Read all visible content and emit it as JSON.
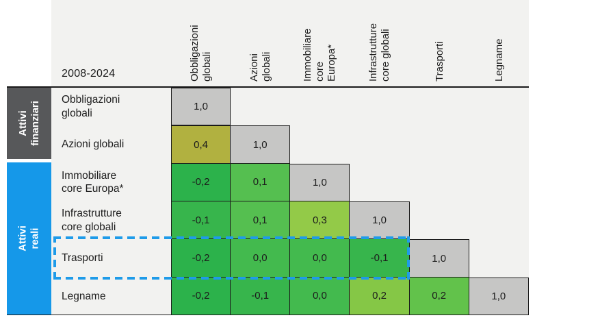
{
  "title": "2008-2024",
  "colors": {
    "page_bg": "#ffffff",
    "table_bg": "#f2f2f0",
    "grid_line": "#1a1a1a",
    "diagonal_cell": "#c6c6c5",
    "financial_block": "#57585a",
    "real_block": "#1598e9",
    "highlight_dash": "#1e9be9",
    "text": "#1c1c1c",
    "side_text": "#ffffff"
  },
  "side_groups": [
    {
      "label": "Attivi\nfinanziari"
    },
    {
      "label": "Attivi reali"
    }
  ],
  "columns": [
    {
      "label": "Obbligazioni\nglobali"
    },
    {
      "label": "Azioni\nglobali"
    },
    {
      "label": "Immobiliare\ncore\nEuropa*"
    },
    {
      "label": "Infrastrutture\ncore globali"
    },
    {
      "label": "Trasporti"
    },
    {
      "label": "Legname"
    }
  ],
  "rows": [
    {
      "label": "Obbligazioni\nglobali",
      "cells": [
        {
          "v": "1,0",
          "bg": "#c6c6c5"
        }
      ]
    },
    {
      "label": "Azioni globali",
      "cells": [
        {
          "v": "0,4",
          "bg": "#b1b140"
        },
        {
          "v": "1,0",
          "bg": "#c6c6c5"
        }
      ]
    },
    {
      "label": "Immobiliare\ncore Europa*",
      "cells": [
        {
          "v": "-0,2",
          "bg": "#2cb24b"
        },
        {
          "v": "0,1",
          "bg": "#55bf50"
        },
        {
          "v": "1,0",
          "bg": "#c6c6c5"
        }
      ]
    },
    {
      "label": "Infrastrutture\ncore globali",
      "cells": [
        {
          "v": "-0,1",
          "bg": "#37b54c"
        },
        {
          "v": "0,1",
          "bg": "#55bf50"
        },
        {
          "v": "0,3",
          "bg": "#93ca48"
        },
        {
          "v": "1,0",
          "bg": "#c6c6c5"
        }
      ]
    },
    {
      "label": "Trasporti",
      "cells": [
        {
          "v": "-0,2",
          "bg": "#2cb24b"
        },
        {
          "v": "0,0",
          "bg": "#43ba4e"
        },
        {
          "v": "0,0",
          "bg": "#43ba4e"
        },
        {
          "v": "-0,1",
          "bg": "#37b54c"
        },
        {
          "v": "1,0",
          "bg": "#c6c6c5"
        }
      ]
    },
    {
      "label": "Legname",
      "cells": [
        {
          "v": "-0,2",
          "bg": "#2cb24b"
        },
        {
          "v": "-0,1",
          "bg": "#37b54c"
        },
        {
          "v": "0,0",
          "bg": "#43ba4e"
        },
        {
          "v": "0,2",
          "bg": "#85c746"
        },
        {
          "v": "0,2",
          "bg": "#62c24b"
        },
        {
          "v": "1,0",
          "bg": "#c6c6c5"
        }
      ]
    }
  ],
  "highlight": {
    "target_row": "Trasporti"
  },
  "chart_data": {
    "type": "heatmap",
    "title": "2008-2024",
    "categories": [
      "Obbligazioni globali",
      "Azioni globali",
      "Immobiliare core Europa*",
      "Infrastrutture core globali",
      "Trasporti",
      "Legname"
    ],
    "groups": [
      {
        "name": "Attivi finanziari",
        "members": [
          "Obbligazioni globali",
          "Azioni globali"
        ]
      },
      {
        "name": "Attivi reali",
        "members": [
          "Immobiliare core Europa*",
          "Infrastrutture core globali",
          "Trasporti",
          "Legname"
        ]
      }
    ],
    "matrix": [
      [
        1.0
      ],
      [
        0.4,
        1.0
      ],
      [
        -0.2,
        0.1,
        1.0
      ],
      [
        -0.1,
        0.1,
        0.3,
        1.0
      ],
      [
        -0.2,
        0.0,
        0.0,
        -0.1,
        1.0
      ],
      [
        -0.2,
        -0.1,
        0.0,
        0.2,
        0.2,
        1.0
      ]
    ],
    "decimal_separator": ",",
    "highlighted_row": "Trasporti",
    "legend_position": "none",
    "color_scale": {
      "negative_green": "#2cb24b",
      "zero_green": "#43ba4e",
      "high_olive": "#b1b140",
      "diagonal_gray": "#c6c6c5"
    }
  }
}
